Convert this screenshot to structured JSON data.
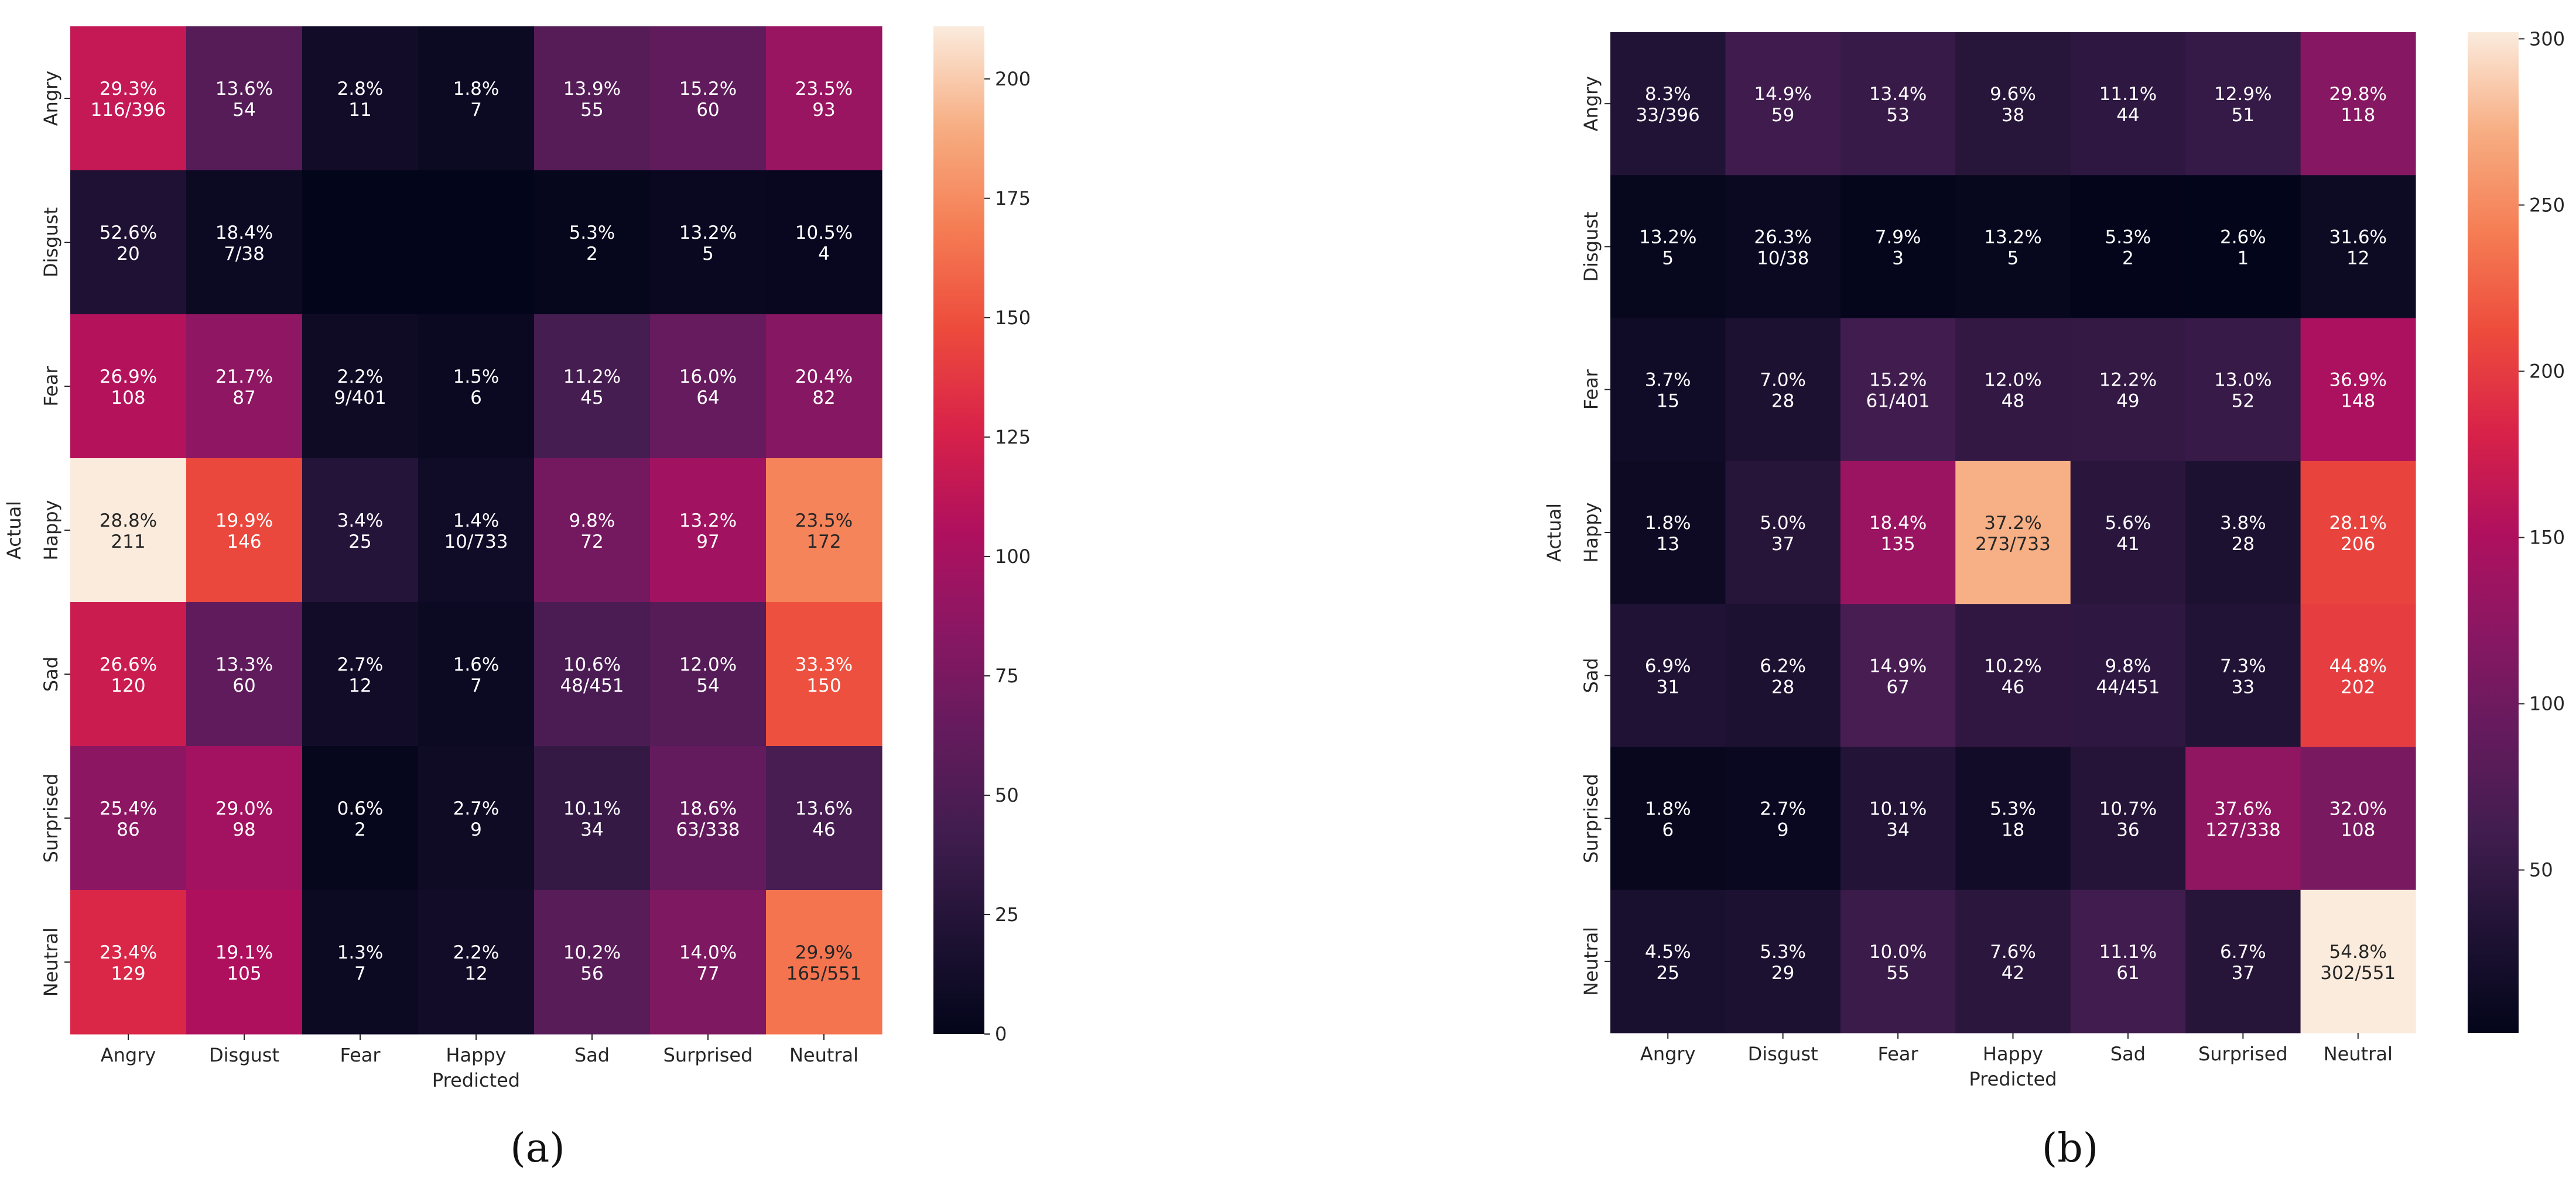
{
  "chart_data": [
    {
      "type": "heatmap",
      "panel_label": "(a)",
      "xlabel": "Predicted",
      "ylabel": "Actual",
      "categories": [
        "Angry",
        "Disgust",
        "Fear",
        "Happy",
        "Sad",
        "Surprised",
        "Neutral"
      ],
      "rows": [
        "Angry",
        "Disgust",
        "Fear",
        "Happy",
        "Sad",
        "Surprised",
        "Neutral"
      ],
      "values": [
        [
          116,
          54,
          11,
          7,
          55,
          60,
          93
        ],
        [
          20,
          7,
          0,
          0,
          2,
          5,
          4
        ],
        [
          108,
          87,
          9,
          6,
          45,
          64,
          82
        ],
        [
          211,
          146,
          25,
          10,
          72,
          97,
          172
        ],
        [
          120,
          60,
          12,
          7,
          48,
          54,
          150
        ],
        [
          86,
          98,
          2,
          9,
          34,
          63,
          46
        ],
        [
          129,
          105,
          7,
          12,
          56,
          77,
          165
        ]
      ],
      "annotations": [
        [
          [
            "29.3%",
            "116/396"
          ],
          [
            "13.6%",
            "54"
          ],
          [
            "2.8%",
            "11"
          ],
          [
            "1.8%",
            "7"
          ],
          [
            "13.9%",
            "55"
          ],
          [
            "15.2%",
            "60"
          ],
          [
            "23.5%",
            "93"
          ]
        ],
        [
          [
            "52.6%",
            "20"
          ],
          [
            "18.4%",
            "7/38"
          ],
          [
            "",
            ""
          ],
          [
            "",
            ""
          ],
          [
            "5.3%",
            "2"
          ],
          [
            "13.2%",
            "5"
          ],
          [
            "10.5%",
            "4"
          ]
        ],
        [
          [
            "26.9%",
            "108"
          ],
          [
            "21.7%",
            "87"
          ],
          [
            "2.2%",
            "9/401"
          ],
          [
            "1.5%",
            "6"
          ],
          [
            "11.2%",
            "45"
          ],
          [
            "16.0%",
            "64"
          ],
          [
            "20.4%",
            "82"
          ]
        ],
        [
          [
            "28.8%",
            "211"
          ],
          [
            "19.9%",
            "146"
          ],
          [
            "3.4%",
            "25"
          ],
          [
            "1.4%",
            "10/733"
          ],
          [
            "9.8%",
            "72"
          ],
          [
            "13.2%",
            "97"
          ],
          [
            "23.5%",
            "172"
          ]
        ],
        [
          [
            "26.6%",
            "120"
          ],
          [
            "13.3%",
            "60"
          ],
          [
            "2.7%",
            "12"
          ],
          [
            "1.6%",
            "7"
          ],
          [
            "10.6%",
            "48/451"
          ],
          [
            "12.0%",
            "54"
          ],
          [
            "33.3%",
            "150"
          ]
        ],
        [
          [
            "25.4%",
            "86"
          ],
          [
            "29.0%",
            "98"
          ],
          [
            "0.6%",
            "2"
          ],
          [
            "2.7%",
            "9"
          ],
          [
            "10.1%",
            "34"
          ],
          [
            "18.6%",
            "63/338"
          ],
          [
            "13.6%",
            "46"
          ]
        ],
        [
          [
            "23.4%",
            "129"
          ],
          [
            "19.1%",
            "105"
          ],
          [
            "1.3%",
            "7"
          ],
          [
            "2.2%",
            "12"
          ],
          [
            "10.2%",
            "56"
          ],
          [
            "14.0%",
            "77"
          ],
          [
            "29.9%",
            "165/551"
          ]
        ]
      ],
      "colorbar": {
        "vmin": 0,
        "vmax": 211,
        "ticks": [
          0,
          25,
          50,
          75,
          100,
          125,
          150,
          175,
          200
        ]
      }
    },
    {
      "type": "heatmap",
      "panel_label": "(b)",
      "xlabel": "Predicted",
      "ylabel": "Actual",
      "categories": [
        "Angry",
        "Disgust",
        "Fear",
        "Happy",
        "Sad",
        "Surprised",
        "Neutral"
      ],
      "rows": [
        "Angry",
        "Disgust",
        "Fear",
        "Happy",
        "Sad",
        "Surprised",
        "Neutral"
      ],
      "values": [
        [
          33,
          59,
          53,
          38,
          44,
          51,
          118
        ],
        [
          5,
          10,
          3,
          5,
          2,
          1,
          12
        ],
        [
          15,
          28,
          61,
          48,
          49,
          52,
          148
        ],
        [
          13,
          37,
          135,
          273,
          41,
          28,
          206
        ],
        [
          31,
          28,
          67,
          46,
          44,
          33,
          202
        ],
        [
          6,
          9,
          34,
          18,
          36,
          127,
          108
        ],
        [
          25,
          29,
          55,
          42,
          61,
          37,
          302
        ]
      ],
      "annotations": [
        [
          [
            "8.3%",
            "33/396"
          ],
          [
            "14.9%",
            "59"
          ],
          [
            "13.4%",
            "53"
          ],
          [
            "9.6%",
            "38"
          ],
          [
            "11.1%",
            "44"
          ],
          [
            "12.9%",
            "51"
          ],
          [
            "29.8%",
            "118"
          ]
        ],
        [
          [
            "13.2%",
            "5"
          ],
          [
            "26.3%",
            "10/38"
          ],
          [
            "7.9%",
            "3"
          ],
          [
            "13.2%",
            "5"
          ],
          [
            "5.3%",
            "2"
          ],
          [
            "2.6%",
            "1"
          ],
          [
            "31.6%",
            "12"
          ]
        ],
        [
          [
            "3.7%",
            "15"
          ],
          [
            "7.0%",
            "28"
          ],
          [
            "15.2%",
            "61/401"
          ],
          [
            "12.0%",
            "48"
          ],
          [
            "12.2%",
            "49"
          ],
          [
            "13.0%",
            "52"
          ],
          [
            "36.9%",
            "148"
          ]
        ],
        [
          [
            "1.8%",
            "13"
          ],
          [
            "5.0%",
            "37"
          ],
          [
            "18.4%",
            "135"
          ],
          [
            "37.2%",
            "273/733"
          ],
          [
            "5.6%",
            "41"
          ],
          [
            "3.8%",
            "28"
          ],
          [
            "28.1%",
            "206"
          ]
        ],
        [
          [
            "6.9%",
            "31"
          ],
          [
            "6.2%",
            "28"
          ],
          [
            "14.9%",
            "67"
          ],
          [
            "10.2%",
            "46"
          ],
          [
            "9.8%",
            "44/451"
          ],
          [
            "7.3%",
            "33"
          ],
          [
            "44.8%",
            "202"
          ]
        ],
        [
          [
            "1.8%",
            "6"
          ],
          [
            "2.7%",
            "9"
          ],
          [
            "10.1%",
            "34"
          ],
          [
            "5.3%",
            "18"
          ],
          [
            "10.7%",
            "36"
          ],
          [
            "37.6%",
            "127/338"
          ],
          [
            "32.0%",
            "108"
          ]
        ],
        [
          [
            "4.5%",
            "25"
          ],
          [
            "5.3%",
            "29"
          ],
          [
            "10.0%",
            "55"
          ],
          [
            "7.6%",
            "42"
          ],
          [
            "11.1%",
            "61"
          ],
          [
            "6.7%",
            "37"
          ],
          [
            "54.8%",
            "302/551"
          ]
        ]
      ],
      "colorbar": {
        "vmin": 1,
        "vmax": 302,
        "ticks": [
          50,
          100,
          150,
          200,
          250,
          300
        ]
      }
    }
  ]
}
